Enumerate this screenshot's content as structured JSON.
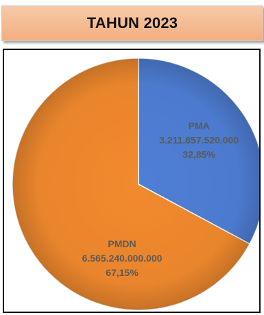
{
  "header": {
    "title": "TAHUN 2023"
  },
  "chart_data": {
    "type": "pie",
    "title": "TAHUN 2023",
    "slices": [
      {
        "name": "PMA",
        "value": 3211857520000,
        "value_label": "3.211.857.520.000",
        "percent": 32.85,
        "percent_label": "32,85%",
        "color": "#4f7fd6"
      },
      {
        "name": "PMDN",
        "value": 6565240000000,
        "value_label": "6.565.240.000.000",
        "percent": 67.15,
        "percent_label": "67,15%",
        "color": "#f28a2e"
      }
    ],
    "start_angle": "12 o'clock",
    "direction": "clockwise"
  }
}
